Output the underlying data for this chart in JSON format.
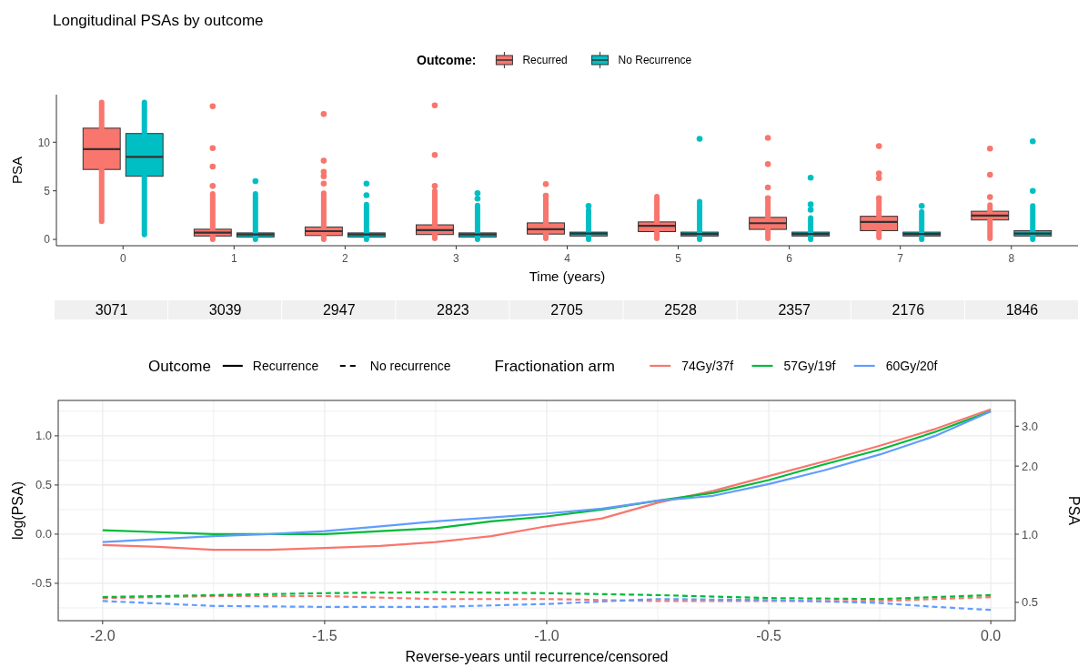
{
  "chart_data": [
    {
      "type": "box",
      "title": "Longitudinal PSAs by outcome",
      "xlabel": "Time (years)",
      "ylabel": "PSA",
      "legend_title": "Outcome:",
      "legend": "top",
      "categories": [
        "0",
        "1",
        "2",
        "3",
        "4",
        "5",
        "6",
        "7",
        "8"
      ],
      "ylim": [
        -0.65,
        14.9
      ],
      "yticks": [
        0,
        5,
        10
      ],
      "series": [
        {
          "name": "Recurred",
          "color": "#f8766d",
          "boxes": [
            {
              "low": 1.85,
              "q1": 7.2,
              "median": 9.3,
              "q3": 11.45,
              "high": 14.1
            },
            {
              "low": 0,
              "q1": 0.35,
              "median": 0.7,
              "q3": 1.05,
              "high": 4.7,
              "outliers": [
                5.5,
                7.5,
                9.4,
                13.7
              ]
            },
            {
              "low": 0,
              "q1": 0.4,
              "median": 0.85,
              "q3": 1.28,
              "high": 4.75,
              "outliers": [
                5.75,
                6.5,
                6.95,
                8.1,
                12.9
              ]
            },
            {
              "low": 0.1,
              "q1": 0.5,
              "median": 0.95,
              "q3": 1.5,
              "high": 5,
              "outliers": [
                5.5,
                8.7,
                13.8
              ]
            },
            {
              "low": 0.1,
              "q1": 0.55,
              "median": 1.05,
              "q3": 1.7,
              "high": 4.25,
              "outliers": [
                4.5,
                5.7
              ]
            },
            {
              "low": 0.1,
              "q1": 0.8,
              "median": 1.4,
              "q3": 1.8,
              "high": 4.4
            },
            {
              "low": 0.1,
              "q1": 1.03,
              "median": 1.67,
              "q3": 2.27,
              "high": 3.9,
              "outliers": [
                4.25,
                5.35,
                7.75,
                10.45
              ]
            },
            {
              "low": 0.2,
              "q1": 0.9,
              "median": 1.8,
              "q3": 2.38,
              "high": 3.9,
              "outliers": [
                4.25,
                6.3,
                6.8,
                9.6
              ]
            },
            {
              "low": 0.1,
              "q1": 2,
              "median": 2.45,
              "q3": 2.9,
              "high": 3.55,
              "outliers": [
                4.35,
                6.65,
                9.35
              ]
            }
          ]
        },
        {
          "name": "No Recurrence",
          "color": "#00bfc4",
          "boxes": [
            {
              "low": 0.5,
              "q1": 6.5,
              "median": 8.5,
              "q3": 10.9,
              "high": 14.1
            },
            {
              "low": 0,
              "q1": 0.25,
              "median": 0.5,
              "q3": 0.67,
              "high": 4.7,
              "outliers": [
                6
              ]
            },
            {
              "low": 0,
              "q1": 0.25,
              "median": 0.5,
              "q3": 0.67,
              "high": 3.6,
              "outliers": [
                4.55,
                5.75
              ]
            },
            {
              "low": 0,
              "q1": 0.25,
              "median": 0.5,
              "q3": 0.67,
              "high": 3.5,
              "outliers": [
                4.2,
                4.75
              ]
            },
            {
              "low": 0,
              "q1": 0.35,
              "median": 0.6,
              "q3": 0.75,
              "high": 3,
              "outliers": [
                3.45
              ]
            },
            {
              "low": 0,
              "q1": 0.35,
              "median": 0.55,
              "q3": 0.75,
              "high": 3.9,
              "outliers": [
                10.35
              ]
            },
            {
              "low": 0,
              "q1": 0.35,
              "median": 0.55,
              "q3": 0.75,
              "high": 2.2,
              "outliers": [
                3.05,
                3.6,
                6.35
              ]
            },
            {
              "low": 0,
              "q1": 0.35,
              "median": 0.55,
              "q3": 0.75,
              "high": 2.85,
              "outliers": [
                3.45
              ]
            },
            {
              "low": 0,
              "q1": 0.35,
              "median": 0.6,
              "q3": 0.9,
              "high": 3.45,
              "outliers": [
                5,
                10.1
              ]
            }
          ]
        }
      ]
    },
    {
      "type": "other",
      "values": [
        3071,
        3039,
        2947,
        2823,
        2705,
        2528,
        2357,
        2176,
        1846
      ],
      "data_labels": true
    },
    {
      "type": "line",
      "xlabel": "Reverse-years until recurrence/censored",
      "ylabel": "log(PSA)",
      "y2label": "PSA",
      "legend": "top",
      "legend_title": "Fractionation arm",
      "annotations": [
        "Outcome",
        "Recurrence",
        "No recurrence"
      ],
      "grid": true,
      "log": "y2",
      "xlim": [
        -2.1,
        0.055
      ],
      "xticks": [
        {
          "value": -2,
          "label": "-2.0"
        },
        {
          "value": -1.75,
          "label": null
        },
        {
          "value": -1.5,
          "label": "-1.5"
        },
        {
          "value": -1.25,
          "label": null
        },
        {
          "value": -1,
          "label": "-1.0"
        },
        {
          "value": -0.75,
          "label": null
        },
        {
          "value": -0.5,
          "label": "-0.5"
        },
        {
          "value": -0.25,
          "label": null
        },
        {
          "value": 0,
          "label": "0.0"
        }
      ],
      "ylim": [
        -0.88,
        1.36
      ],
      "yticks": [
        {
          "value": -0.75,
          "label": null
        },
        {
          "value": -0.5,
          "label": "-0.5"
        },
        {
          "value": -0.25,
          "label": null
        },
        {
          "value": 0,
          "label": "0.0"
        },
        {
          "value": 0.25,
          "label": null
        },
        {
          "value": 0.5,
          "label": "0.5"
        },
        {
          "value": 0.75,
          "label": null
        },
        {
          "value": 1,
          "label": "1.0"
        },
        {
          "value": 1.25,
          "label": null
        }
      ],
      "y2lim": [
        0.415,
        3.9
      ],
      "y2ticks": [
        0.5,
        {
          "value": 1,
          "label": "1.0"
        },
        {
          "value": 2,
          "label": "2.0"
        },
        {
          "value": 3,
          "label": "3.0"
        }
      ],
      "x": [
        -2,
        -1.875,
        -1.75,
        -1.625,
        -1.5,
        -1.375,
        -1.25,
        -1.125,
        -1,
        -0.875,
        -0.75,
        -0.625,
        -0.5,
        -0.375,
        -0.25,
        -0.125,
        0
      ],
      "series": [
        {
          "name": "74Gy/37f",
          "color": "#f8766d",
          "line_style": "solid",
          "values": [
            -0.11,
            -0.13,
            -0.16,
            -0.16,
            -0.14,
            -0.12,
            -0.08,
            -0.02,
            0.08,
            0.16,
            0.32,
            0.44,
            0.59,
            0.74,
            0.9,
            1.07,
            1.27
          ]
        },
        {
          "name": "57Gy/19f",
          "color": "#00ba38",
          "line_style": "solid",
          "values": [
            0.04,
            0.02,
            0,
            0,
            0,
            0.03,
            0.06,
            0.13,
            0.18,
            0.25,
            0.34,
            0.42,
            0.55,
            0.71,
            0.86,
            1.04,
            1.25
          ]
        },
        {
          "name": "60Gy/20f",
          "color": "#619cff",
          "line_style": "solid",
          "values": [
            -0.08,
            -0.05,
            -0.02,
            0,
            0.03,
            0.08,
            0.13,
            0.17,
            0.21,
            0.26,
            0.34,
            0.39,
            0.51,
            0.65,
            0.81,
            1,
            1.25
          ]
        },
        {
          "color": "#f8766d",
          "line_style": "dashed",
          "x": [
            -2,
            -1.75,
            -1.5,
            -1.25,
            -1,
            -0.75,
            -0.5,
            -0.25,
            -0.125,
            0
          ],
          "values": [
            -0.65,
            -0.63,
            -0.63,
            -0.66,
            -0.66,
            -0.68,
            -0.68,
            -0.68,
            -0.66,
            -0.64
          ]
        },
        {
          "color": "#00ba38",
          "line_style": "dashed",
          "x": [
            -2,
            -1.75,
            -1.5,
            -1.25,
            -1,
            -0.75,
            -0.5,
            -0.25,
            -0.125,
            0
          ],
          "values": [
            -0.64,
            -0.62,
            -0.6,
            -0.59,
            -0.6,
            -0.62,
            -0.65,
            -0.66,
            -0.64,
            -0.62
          ]
        },
        {
          "color": "#619cff",
          "line_style": "dashed",
          "x": [
            -2,
            -1.75,
            -1.5,
            -1.25,
            -1,
            -0.75,
            -0.5,
            -0.25,
            -0.125,
            0
          ],
          "values": [
            -0.68,
            -0.73,
            -0.74,
            -0.74,
            -0.71,
            -0.66,
            -0.67,
            -0.7,
            -0.74,
            -0.77
          ]
        }
      ]
    }
  ]
}
